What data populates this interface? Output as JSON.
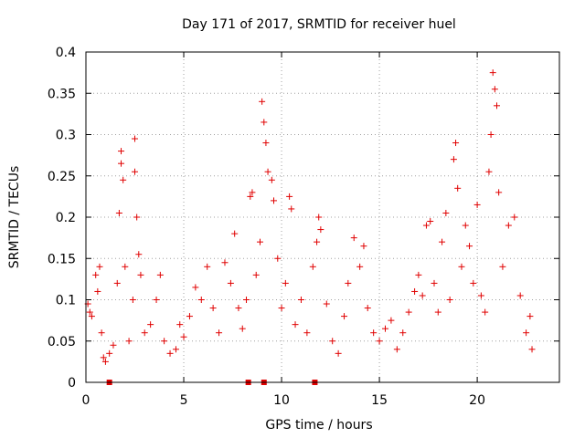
{
  "chart_data": {
    "type": "scatter",
    "title": "Day 171 of 2017, SRMTID for receiver huel",
    "xlabel": "GPS time / hours",
    "ylabel": "SRMTID / TECUs",
    "xlim": [
      0,
      24.2
    ],
    "ylim": [
      0,
      0.4
    ],
    "x_ticks": [
      0,
      5,
      10,
      15,
      20
    ],
    "x_tick_labels": [
      "0",
      "5",
      "10",
      "15",
      "20"
    ],
    "y_ticks": [
      0,
      0.05,
      0.1,
      0.15,
      0.2,
      0.25,
      0.3,
      0.35,
      0.4
    ],
    "y_tick_labels": [
      "0",
      "0.05",
      "0.1",
      "0.15",
      "0.2",
      "0.25",
      "0.3",
      "0.35",
      "0.4"
    ],
    "grid": true,
    "marker": "plus",
    "color": "#e00000",
    "series": [
      {
        "name": "SRMTID",
        "points": [
          [
            0.1,
            0.095
          ],
          [
            0.2,
            0.085
          ],
          [
            0.3,
            0.08
          ],
          [
            0.5,
            0.13
          ],
          [
            0.6,
            0.11
          ],
          [
            0.7,
            0.14
          ],
          [
            0.8,
            0.06
          ],
          [
            0.9,
            0.03
          ],
          [
            1.0,
            0.025
          ],
          [
            1.2,
            0.035
          ],
          [
            1.4,
            0.045
          ],
          [
            1.6,
            0.12
          ],
          [
            1.7,
            0.205
          ],
          [
            1.8,
            0.28
          ],
          [
            1.8,
            0.265
          ],
          [
            1.9,
            0.245
          ],
          [
            2.0,
            0.14
          ],
          [
            2.2,
            0.05
          ],
          [
            2.4,
            0.1
          ],
          [
            2.5,
            0.295
          ],
          [
            2.5,
            0.255
          ],
          [
            2.6,
            0.2
          ],
          [
            2.7,
            0.155
          ],
          [
            2.8,
            0.13
          ],
          [
            3.0,
            0.06
          ],
          [
            3.3,
            0.07
          ],
          [
            3.6,
            0.1
          ],
          [
            3.8,
            0.13
          ],
          [
            4.0,
            0.05
          ],
          [
            4.3,
            0.035
          ],
          [
            4.6,
            0.04
          ],
          [
            4.8,
            0.07
          ],
          [
            5.0,
            0.055
          ],
          [
            5.3,
            0.08
          ],
          [
            5.6,
            0.115
          ],
          [
            5.9,
            0.1
          ],
          [
            6.2,
            0.14
          ],
          [
            6.5,
            0.09
          ],
          [
            6.8,
            0.06
          ],
          [
            7.1,
            0.145
          ],
          [
            7.4,
            0.12
          ],
          [
            7.6,
            0.18
          ],
          [
            7.8,
            0.09
          ],
          [
            8.0,
            0.065
          ],
          [
            8.2,
            0.1
          ],
          [
            8.4,
            0.225
          ],
          [
            8.5,
            0.23
          ],
          [
            8.7,
            0.13
          ],
          [
            8.9,
            0.17
          ],
          [
            9.0,
            0.34
          ],
          [
            9.1,
            0.315
          ],
          [
            9.2,
            0.29
          ],
          [
            9.3,
            0.255
          ],
          [
            9.5,
            0.245
          ],
          [
            9.6,
            0.22
          ],
          [
            9.8,
            0.15
          ],
          [
            10.0,
            0.09
          ],
          [
            10.2,
            0.12
          ],
          [
            10.4,
            0.225
          ],
          [
            10.5,
            0.21
          ],
          [
            10.7,
            0.07
          ],
          [
            11.0,
            0.1
          ],
          [
            11.3,
            0.06
          ],
          [
            11.6,
            0.14
          ],
          [
            11.8,
            0.17
          ],
          [
            11.9,
            0.2
          ],
          [
            12.0,
            0.185
          ],
          [
            12.3,
            0.095
          ],
          [
            12.6,
            0.05
          ],
          [
            12.9,
            0.035
          ],
          [
            13.2,
            0.08
          ],
          [
            13.4,
            0.12
          ],
          [
            13.7,
            0.175
          ],
          [
            14.0,
            0.14
          ],
          [
            14.2,
            0.165
          ],
          [
            14.4,
            0.09
          ],
          [
            14.7,
            0.06
          ],
          [
            15.0,
            0.05
          ],
          [
            15.3,
            0.065
          ],
          [
            15.6,
            0.075
          ],
          [
            15.9,
            0.04
          ],
          [
            16.2,
            0.06
          ],
          [
            16.5,
            0.085
          ],
          [
            16.8,
            0.11
          ],
          [
            17.0,
            0.13
          ],
          [
            17.2,
            0.105
          ],
          [
            17.4,
            0.19
          ],
          [
            17.6,
            0.195
          ],
          [
            17.8,
            0.12
          ],
          [
            18.0,
            0.085
          ],
          [
            18.2,
            0.17
          ],
          [
            18.4,
            0.205
          ],
          [
            18.6,
            0.1
          ],
          [
            18.8,
            0.27
          ],
          [
            18.9,
            0.29
          ],
          [
            19.0,
            0.235
          ],
          [
            19.2,
            0.14
          ],
          [
            19.4,
            0.19
          ],
          [
            19.6,
            0.165
          ],
          [
            19.8,
            0.12
          ],
          [
            20.0,
            0.215
          ],
          [
            20.2,
            0.105
          ],
          [
            20.4,
            0.085
          ],
          [
            20.6,
            0.255
          ],
          [
            20.7,
            0.3
          ],
          [
            20.8,
            0.375
          ],
          [
            20.9,
            0.355
          ],
          [
            21.0,
            0.335
          ],
          [
            21.1,
            0.23
          ],
          [
            21.3,
            0.14
          ],
          [
            21.6,
            0.19
          ],
          [
            21.9,
            0.2
          ],
          [
            22.2,
            0.105
          ],
          [
            22.5,
            0.06
          ],
          [
            22.7,
            0.08
          ],
          [
            22.8,
            0.04
          ]
        ]
      }
    ],
    "low_markers": [
      1.2,
      8.3,
      9.1,
      11.7
    ]
  }
}
